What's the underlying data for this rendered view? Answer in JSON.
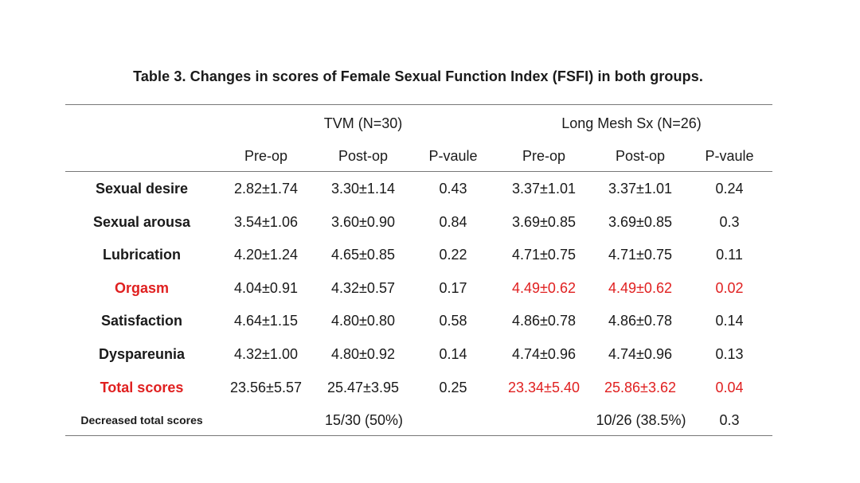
{
  "title": "Table 3. Changes in scores of Female Sexual Function Index (FSFI) in both groups.",
  "groups": {
    "tvm": "TVM (N=30)",
    "long": "Long Mesh Sx (N=26)"
  },
  "subheaders": [
    "Pre-op",
    "Post-op",
    "P-vaule",
    "Pre-op",
    "Post-op",
    "P-vaule"
  ],
  "rows": [
    {
      "label": "Sexual desire",
      "label_red": false,
      "cells": [
        "2.82±1.74",
        "3.30±1.14",
        "0.43",
        "3.37±1.01",
        "3.37±1.01",
        "0.24"
      ],
      "red": [
        false,
        false,
        false,
        false,
        false,
        false
      ]
    },
    {
      "label": "Sexual arousa",
      "label_red": false,
      "cells": [
        "3.54±1.06",
        "3.60±0.90",
        "0.84",
        "3.69±0.85",
        "3.69±0.85",
        "0.3"
      ],
      "red": [
        false,
        false,
        false,
        false,
        false,
        false
      ]
    },
    {
      "label": "Lubrication",
      "label_red": false,
      "cells": [
        "4.20±1.24",
        "4.65±0.85",
        "0.22",
        "4.71±0.75",
        "4.71±0.75",
        "0.11"
      ],
      "red": [
        false,
        false,
        false,
        false,
        false,
        false
      ]
    },
    {
      "label": "Orgasm",
      "label_red": true,
      "cells": [
        "4.04±0.91",
        "4.32±0.57",
        "0.17",
        "4.49±0.62",
        "4.49±0.62",
        "0.02"
      ],
      "red": [
        false,
        false,
        false,
        true,
        true,
        true
      ]
    },
    {
      "label": "Satisfaction",
      "label_red": false,
      "cells": [
        "4.64±1.15",
        "4.80±0.80",
        "0.58",
        "4.86±0.78",
        "4.86±0.78",
        "0.14"
      ],
      "red": [
        false,
        false,
        false,
        false,
        false,
        false
      ]
    },
    {
      "label": "Dyspareunia",
      "label_red": false,
      "cells": [
        "4.32±1.00",
        "4.80±0.92",
        "0.14",
        "4.74±0.96",
        "4.74±0.96",
        "0.13"
      ],
      "red": [
        false,
        false,
        false,
        false,
        false,
        false
      ]
    },
    {
      "label": "Total scores",
      "label_red": true,
      "cells": [
        "23.56±5.57",
        "25.47±3.95",
        "0.25",
        "23.34±5.40",
        "25.86±3.62",
        "0.04"
      ],
      "red": [
        false,
        false,
        false,
        true,
        true,
        true
      ]
    }
  ],
  "last_row": {
    "label": "Decreased total scores",
    "tvm": "15/30 (50%)",
    "long": "10/26 (38.5%)",
    "p": "0.3"
  },
  "colors": {
    "text": "#1a1a1a",
    "highlight": "#e02020",
    "rule": "#777777"
  }
}
